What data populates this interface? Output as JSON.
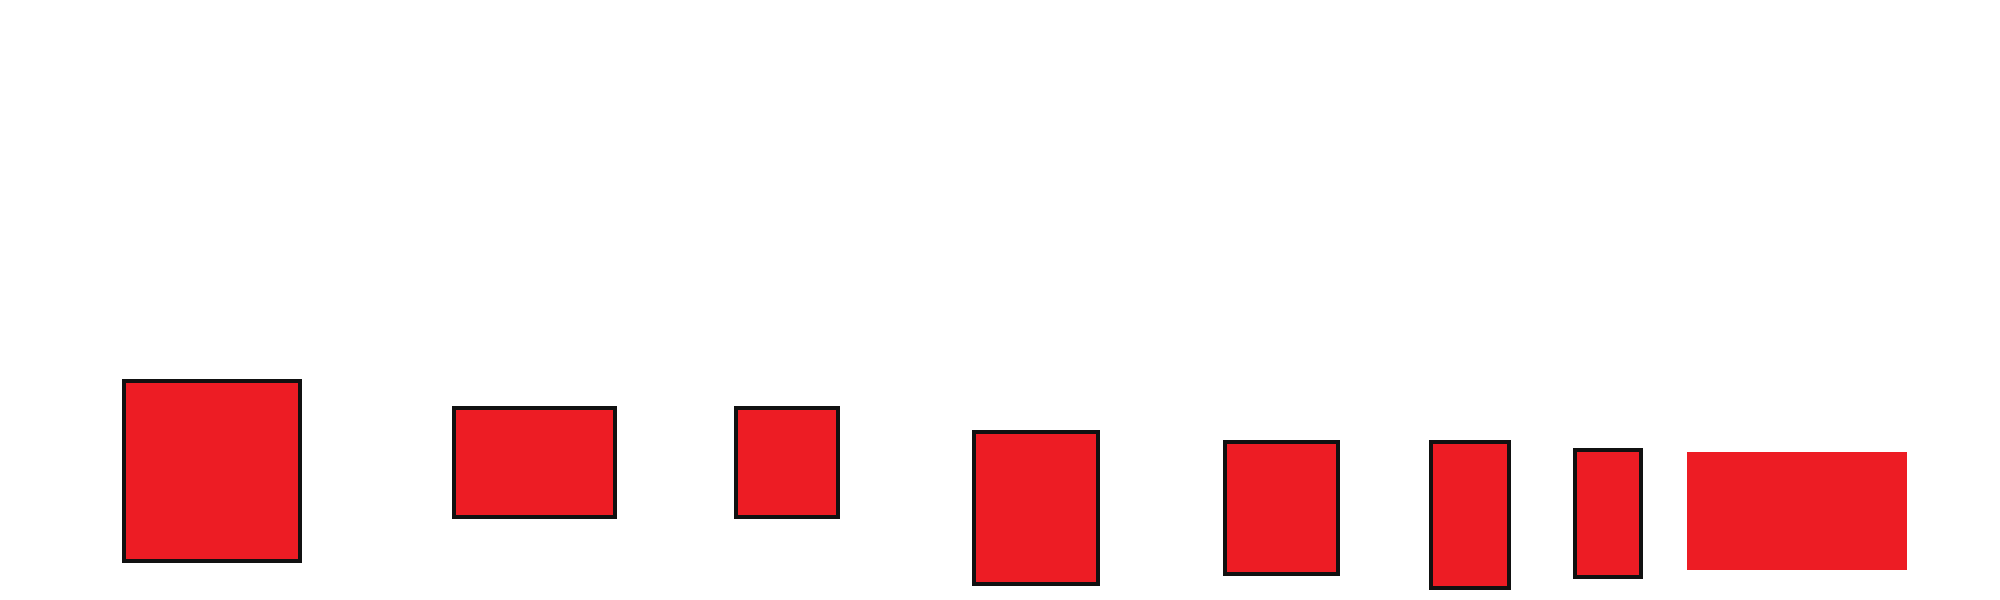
{
  "colors": {
    "background": "#ffffff",
    "shape_fill": "#ed1c24",
    "shape_outline": "#111111"
  },
  "shapes": [
    {
      "id": "s1",
      "name": "red-rectangle-1",
      "fill": "#ed1c24",
      "outlined": true
    },
    {
      "id": "s2",
      "name": "red-rectangle-2",
      "fill": "#ed1c24",
      "outlined": true
    },
    {
      "id": "s3",
      "name": "red-rectangle-3",
      "fill": "#ed1c24",
      "outlined": true
    },
    {
      "id": "s4",
      "name": "red-rectangle-4",
      "fill": "#ed1c24",
      "outlined": true
    },
    {
      "id": "s5",
      "name": "red-rectangle-5",
      "fill": "#ed1c24",
      "outlined": true
    },
    {
      "id": "s6",
      "name": "red-rectangle-6",
      "fill": "#ed1c24",
      "outlined": true
    },
    {
      "id": "s7",
      "name": "red-rectangle-7",
      "fill": "#ed1c24",
      "outlined": true
    },
    {
      "id": "s8",
      "name": "red-rectangle-8",
      "fill": "#ed1c24",
      "outlined": false
    }
  ]
}
